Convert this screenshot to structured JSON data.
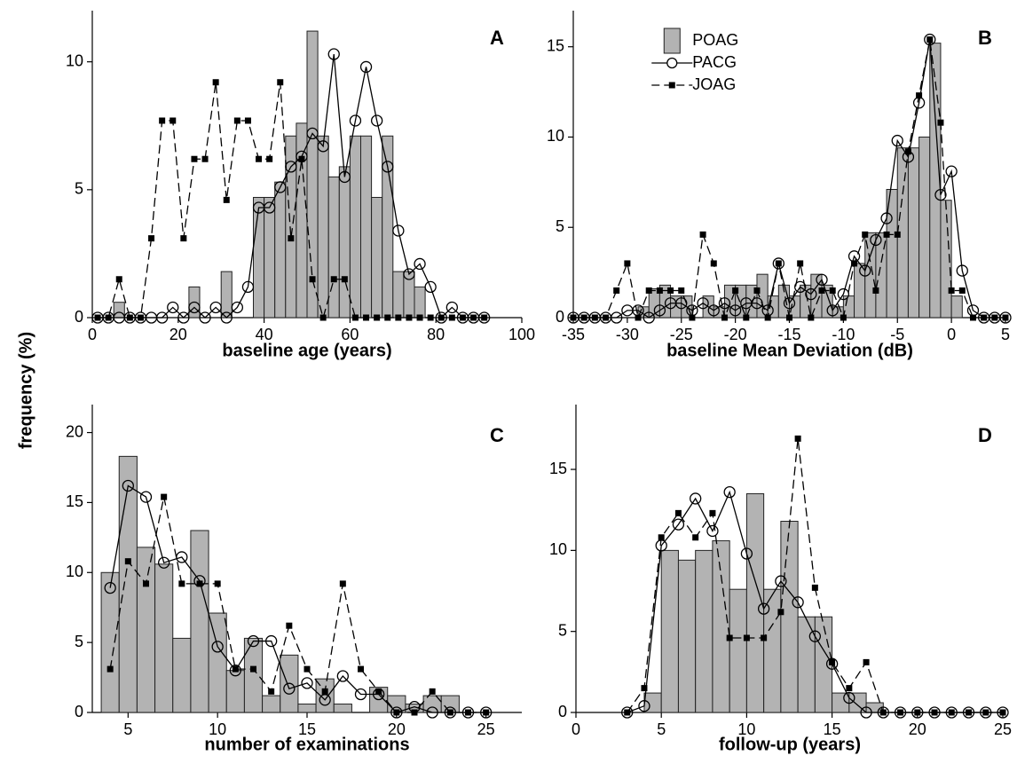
{
  "ylabel": "frequency (%)",
  "chart_data": [
    {
      "type": "histogram",
      "title": "A",
      "xlabel": "baseline age (years)",
      "xlim": [
        0,
        100
      ],
      "xticks": [
        0,
        20,
        40,
        60,
        80,
        100
      ],
      "ylim": [
        0,
        12
      ],
      "yticks": [
        0,
        5,
        10
      ],
      "bins": [
        0,
        2.5,
        5,
        7.5,
        10,
        12.5,
        15,
        17.5,
        20,
        22.5,
        25,
        27.5,
        30,
        32.5,
        35,
        37.5,
        40,
        42.5,
        45,
        47.5,
        50,
        52.5,
        55,
        57.5,
        60,
        62.5,
        65,
        67.5,
        70,
        72.5,
        75,
        77.5,
        80,
        82.5,
        85,
        87.5,
        90,
        92.5
      ],
      "x": [
        1.25,
        3.75,
        6.25,
        8.75,
        11.25,
        13.75,
        16.25,
        18.75,
        21.25,
        23.75,
        26.25,
        28.75,
        31.25,
        33.75,
        36.25,
        38.75,
        41.25,
        43.75,
        46.25,
        48.75,
        51.25,
        53.75,
        56.25,
        58.75,
        61.25,
        63.75,
        66.25,
        68.75,
        71.25,
        73.75,
        76.25,
        78.75,
        81.25,
        83.75,
        86.25,
        88.75,
        91.25
      ],
      "series": [
        {
          "style": "bar",
          "color": "#b3b3b3",
          "values": [
            0,
            0,
            0.6,
            0,
            0,
            0,
            0,
            0,
            0,
            1.2,
            0,
            0,
            1.8,
            0,
            0,
            4.7,
            4.7,
            5.3,
            7.1,
            7.6,
            11.2,
            7.1,
            5.5,
            5.9,
            7.1,
            7.1,
            4.7,
            7.1,
            1.8,
            1.8,
            1.2,
            0,
            0,
            0,
            0,
            0,
            0
          ]
        },
        {
          "style": "circle",
          "color": "#000000",
          "values": [
            0,
            0,
            0,
            0,
            0,
            0,
            0,
            0.4,
            0,
            0.4,
            0,
            0.4,
            0,
            0.4,
            1.2,
            4.3,
            4.3,
            5.1,
            5.9,
            6.3,
            7.2,
            6.7,
            10.3,
            5.5,
            7.7,
            9.8,
            7.7,
            5.9,
            3.4,
            1.7,
            2.1,
            1.2,
            0,
            0.4,
            0,
            0,
            0
          ]
        },
        {
          "style": "square-dashed",
          "color": "#000000",
          "values": [
            0,
            0,
            1.5,
            0,
            0,
            3.1,
            7.7,
            7.7,
            3.1,
            6.2,
            6.2,
            9.2,
            4.6,
            7.7,
            7.7,
            6.2,
            6.2,
            9.2,
            3.1,
            6.2,
            1.5,
            0,
            1.5,
            1.5,
            0,
            0,
            0,
            0,
            0,
            0,
            0,
            0,
            0,
            0,
            0,
            0,
            0
          ]
        }
      ]
    },
    {
      "type": "histogram",
      "title": "B",
      "xlabel": "baseline Mean Deviation (dB)",
      "xlim": [
        -35,
        5
      ],
      "xticks": [
        -35,
        -30,
        -25,
        -20,
        -15,
        -10,
        -5,
        0,
        5
      ],
      "ylim": [
        0,
        17
      ],
      "yticks": [
        0,
        5,
        10,
        15
      ],
      "legend": "top-center",
      "bins": [
        -30,
        -29,
        -28,
        -27,
        -26,
        -25,
        -24,
        -23,
        -22,
        -21,
        -20,
        -19,
        -18,
        -17,
        -16,
        -15,
        -14,
        -13,
        -12,
        -11,
        -10,
        -9,
        -8,
        -7,
        -6,
        -5,
        -4,
        -3,
        -2,
        -1,
        0,
        1,
        2
      ],
      "x": [
        -35,
        -34,
        -33,
        -32,
        -31,
        -30,
        -29,
        -28,
        -27,
        -26,
        -25,
        -24,
        -23,
        -22,
        -21,
        -20,
        -19,
        -18,
        -17,
        -16,
        -15,
        -14,
        -13,
        -12,
        -11,
        -10,
        -9,
        -8,
        -7,
        -6,
        -5,
        -4,
        -3,
        -2,
        -1,
        0,
        1,
        2,
        3,
        4,
        5
      ],
      "series": [
        {
          "name": "POAG",
          "style": "bar",
          "color": "#b3b3b3",
          "values": [
            0,
            0.6,
            1.6,
            1.8,
            1.2,
            1.2,
            0,
            1.2,
            0.6,
            1.8,
            1.8,
            1.8,
            2.4,
            1.2,
            1.8,
            1.2,
            1.8,
            2.4,
            1.8,
            0.6,
            1.2,
            3.0,
            4.7,
            4.7,
            7.1,
            9.4,
            9.4,
            10.0,
            15.2,
            6.5,
            1.2,
            0
          ]
        },
        {
          "name": "PACG",
          "style": "circle",
          "color": "#000000",
          "values": [
            0,
            0,
            0,
            0,
            0,
            0.4,
            0.4,
            0,
            0.4,
            0.8,
            0.8,
            0.4,
            0.8,
            0.4,
            0.8,
            0.4,
            0.8,
            0.8,
            0.4,
            3.0,
            0.8,
            1.7,
            1.3,
            2.1,
            0.4,
            1.3,
            3.4,
            2.6,
            4.3,
            5.5,
            9.8,
            8.9,
            11.9,
            15.4,
            6.8,
            8.1,
            2.6,
            0.4,
            0,
            0,
            0
          ]
        },
        {
          "name": "JOAG",
          "style": "square-dashed",
          "color": "#000000",
          "values": [
            0,
            0,
            0,
            0,
            1.5,
            3.0,
            0,
            1.5,
            1.5,
            1.5,
            1.5,
            0,
            4.6,
            3.0,
            0,
            1.5,
            0,
            1.5,
            0,
            3.0,
            0,
            3.0,
            0,
            1.5,
            1.5,
            0,
            3.0,
            4.6,
            1.5,
            4.6,
            4.6,
            9.2,
            12.3,
            15.4,
            10.8,
            1.5,
            1.5,
            0,
            0,
            0,
            0
          ]
        }
      ]
    },
    {
      "type": "histogram",
      "title": "C",
      "xlabel": "number of examinations",
      "xlim": [
        3,
        27
      ],
      "xticks": [
        5,
        10,
        15,
        20,
        25
      ],
      "ylim": [
        0,
        22
      ],
      "yticks": [
        0,
        5,
        10,
        15,
        20
      ],
      "bins": [
        3.5,
        4.5,
        5.5,
        6.5,
        7.5,
        8.5,
        9.5,
        10.5,
        11.5,
        12.5,
        13.5,
        14.5,
        15.5,
        16.5,
        17.5,
        18.5,
        19.5,
        20.5,
        21.5,
        22.5,
        23.5
      ],
      "x": [
        4,
        5,
        6,
        7,
        8,
        9,
        10,
        11,
        12,
        13,
        14,
        15,
        16,
        17,
        18,
        19,
        20,
        21,
        22,
        23,
        24,
        25
      ],
      "series": [
        {
          "style": "bar",
          "color": "#b3b3b3",
          "values": [
            10.0,
            18.3,
            11.8,
            10.6,
            5.3,
            13.0,
            7.1,
            3.0,
            5.3,
            1.2,
            4.1,
            0.6,
            2.4,
            0.6,
            0,
            1.8,
            1.2,
            0.6,
            1.2,
            1.2
          ]
        },
        {
          "style": "circle",
          "color": "#000000",
          "values": [
            8.9,
            16.2,
            15.4,
            10.7,
            11.1,
            9.4,
            4.7,
            3.0,
            5.1,
            5.1,
            1.7,
            2.1,
            0.9,
            2.6,
            1.3,
            1.3,
            0,
            0.4,
            0,
            0,
            0,
            0
          ]
        },
        {
          "style": "square-dashed",
          "color": "#000000",
          "values": [
            3.1,
            10.8,
            9.2,
            15.4,
            9.2,
            9.2,
            9.2,
            3.1,
            3.1,
            1.5,
            6.2,
            3.1,
            1.5,
            9.2,
            3.1,
            1.5,
            0,
            0,
            1.5,
            0,
            0,
            0
          ]
        }
      ]
    },
    {
      "type": "histogram",
      "title": "D",
      "xlabel": "follow-up (years)",
      "xlim": [
        0,
        25
      ],
      "xticks": [
        0,
        5,
        10,
        15,
        20,
        25
      ],
      "ylim": [
        0,
        19
      ],
      "yticks": [
        0,
        5,
        10,
        15
      ],
      "bins": [
        4,
        5,
        6,
        7,
        8,
        9,
        10,
        11,
        12,
        13,
        14,
        15,
        16,
        17,
        18
      ],
      "x": [
        3,
        4,
        5,
        6,
        7,
        8,
        9,
        10,
        11,
        12,
        13,
        14,
        15,
        16,
        17,
        18,
        19,
        20,
        21,
        22,
        23,
        24,
        25
      ],
      "series": [
        {
          "style": "bar",
          "color": "#b3b3b3",
          "values": [
            1.2,
            10.0,
            9.4,
            10.0,
            10.6,
            7.6,
            13.5,
            7.6,
            11.8,
            5.9,
            5.9,
            1.2,
            1.2,
            0.6
          ]
        },
        {
          "style": "circle",
          "color": "#000000",
          "values": [
            0,
            0.4,
            10.3,
            11.6,
            13.2,
            11.2,
            13.6,
            9.8,
            6.4,
            8.1,
            6.8,
            4.7,
            3.0,
            0.9,
            0,
            0,
            0,
            0,
            0,
            0,
            0,
            0,
            0
          ]
        },
        {
          "style": "square-dashed",
          "color": "#000000",
          "values": [
            0,
            1.5,
            10.8,
            12.3,
            10.8,
            12.3,
            4.6,
            4.6,
            4.6,
            6.2,
            16.9,
            7.7,
            3.1,
            1.5,
            3.1,
            0,
            0,
            0,
            0,
            0,
            0,
            0,
            0
          ]
        }
      ]
    }
  ]
}
